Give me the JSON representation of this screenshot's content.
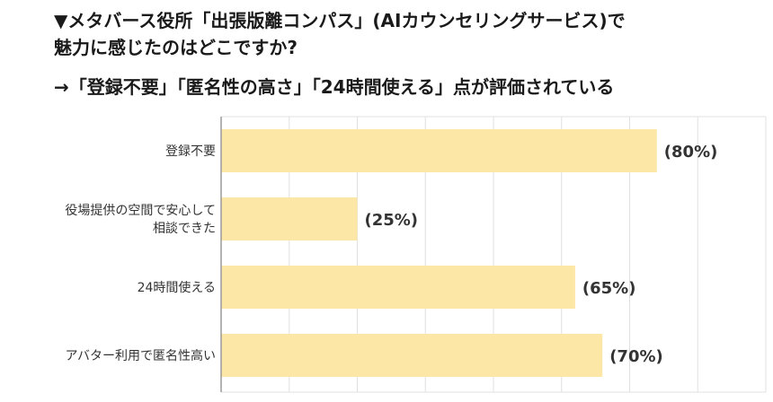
{
  "header": {
    "title_line1": "▼メタバース役所「出張版離コンパス」(AIカウンセリングサービス)で",
    "title_line2": "魅力に感じたのはどこですか?",
    "subtitle": "→「登録不要」「匿名性の高さ」「24時間使える」点が評価されている"
  },
  "colors": {
    "bar": "#fde7a6",
    "grid": "#e0e0e0",
    "axis": "#9a9a9a"
  },
  "chart_data": {
    "type": "bar",
    "orientation": "horizontal",
    "categories": [
      [
        "登録不要"
      ],
      [
        "役場提供の空間で安心して",
        "相談できた"
      ],
      [
        "24時間使える"
      ],
      [
        "アバター利用で匿名性高い"
      ]
    ],
    "values": [
      80,
      25,
      65,
      70
    ],
    "value_labels": [
      "(80%)",
      "(25%)",
      "(65%)",
      "(70%)"
    ],
    "xlim": [
      0,
      100
    ],
    "grid": true,
    "legend": "none"
  }
}
